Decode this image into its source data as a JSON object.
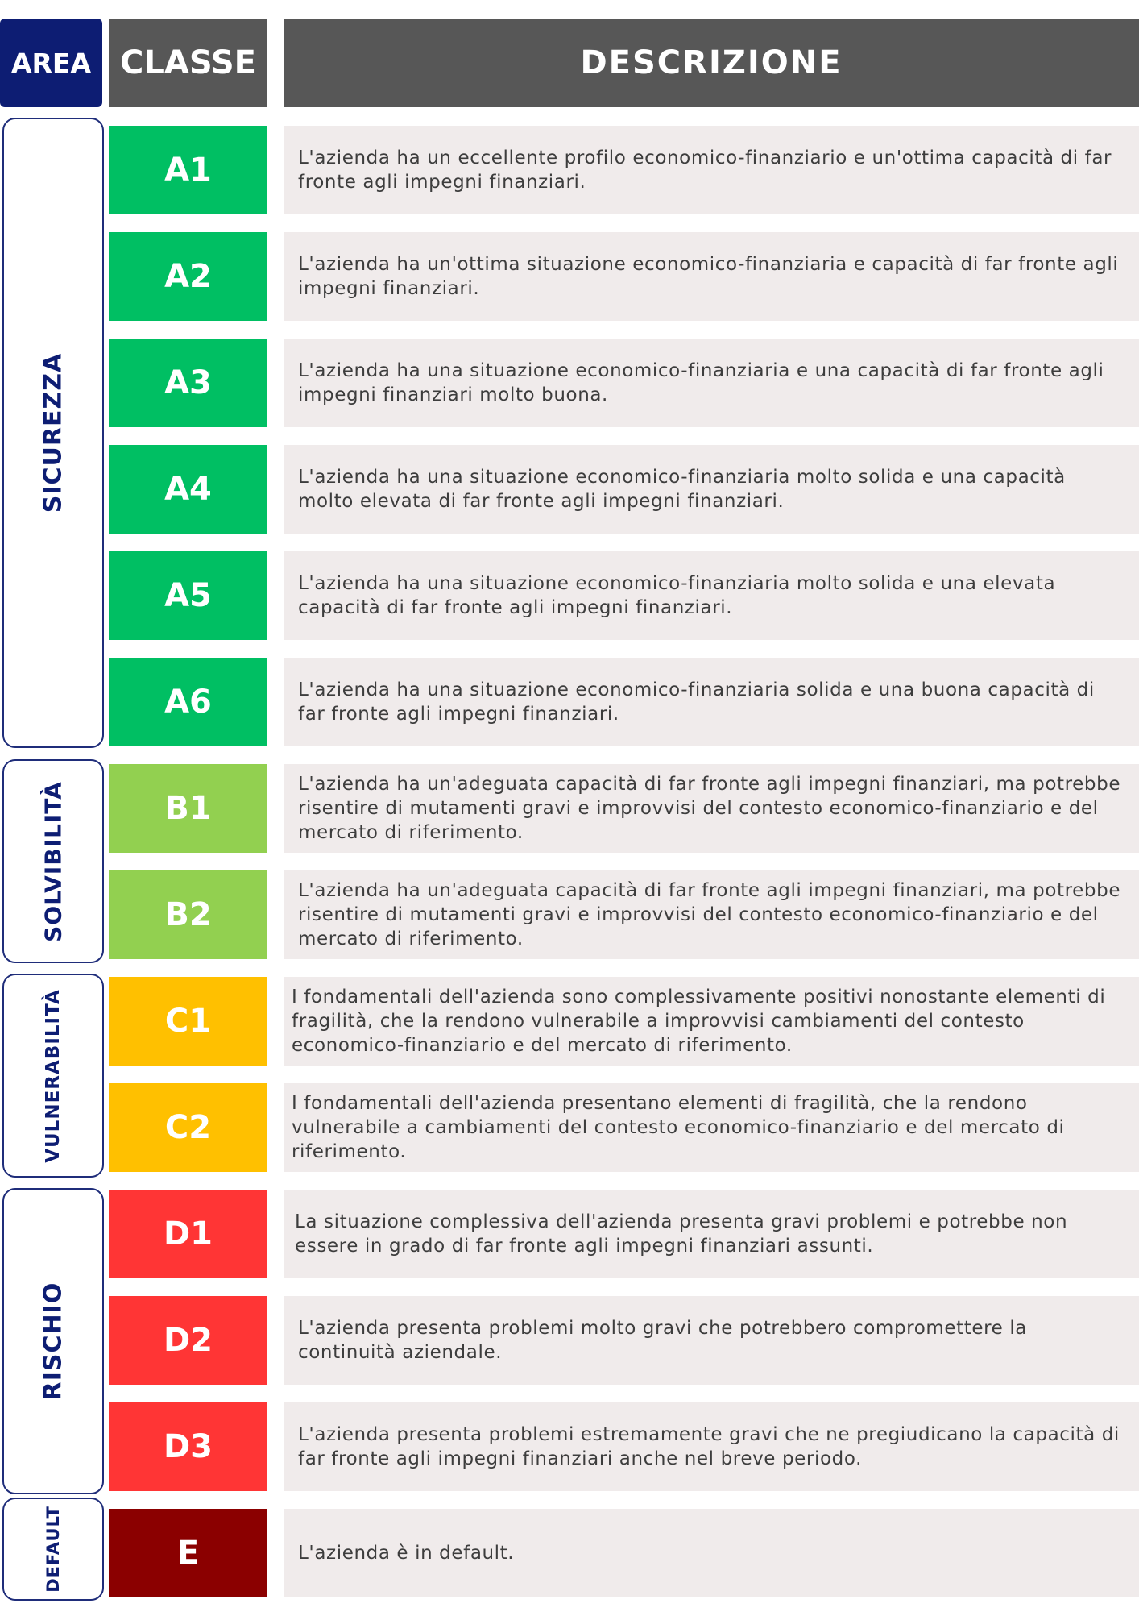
{
  "header": {
    "area": "AREA",
    "class": "CLASSE",
    "description": "DESCRIZIONE"
  },
  "colors": {
    "header_area": "#0d1d73",
    "header_dark": "#575757",
    "class_a": "#00bf63",
    "class_b": "#92d050",
    "class_c": "#ffc000",
    "class_d": "#ff3535",
    "class_e": "#8b0000",
    "desc_bg": "#f0ebeb",
    "area_text": "#0d1d73"
  },
  "areas": [
    {
      "label": "SICUREZZA"
    },
    {
      "label": "SOLVIBILITÀ"
    },
    {
      "label": "VULNERABILITÀ"
    },
    {
      "label": "RISCHIO"
    },
    {
      "label": "DEFAULT"
    }
  ],
  "rows": [
    {
      "class": "A1",
      "description": "L'azienda ha un eccellente profilo economico-finanziario e un'ottima capacità di far fronte agli impegni finanziari."
    },
    {
      "class": "A2",
      "description": "L'azienda ha un'ottima situazione economico-finanziaria e capacità di far fronte agli impegni finanziari."
    },
    {
      "class": "A3",
      "description": "L'azienda ha una situazione economico-finanziaria e una capacità di far fronte agli impegni finanziari molto buona."
    },
    {
      "class": "A4",
      "description": "L'azienda ha una situazione economico-finanziaria molto solida e una capacità molto elevata di far fronte agli impegni finanziari."
    },
    {
      "class": "A5",
      "description": "L'azienda ha una situazione economico-finanziaria molto solida e una elevata capacità di far fronte agli impegni finanziari."
    },
    {
      "class": "A6",
      "description": "L'azienda ha una situazione economico-finanziaria solida e una buona capacità di far fronte agli impegni finanziari."
    },
    {
      "class": "B1",
      "description": "L'azienda ha un'adeguata capacità di far fronte agli impegni finanziari, ma potrebbe risentire di mutamenti gravi e improvvisi del contesto economico-finanziario e del mercato di riferimento."
    },
    {
      "class": "B2",
      "description": "L'azienda ha un'adeguata capacità di far fronte agli impegni finanziari, ma potrebbe risentire di mutamenti gravi e improvvisi del contesto economico-finanziario e del mercato di riferimento."
    },
    {
      "class": "C1",
      "description": "I fondamentali dell'azienda sono complessivamente positivi nonostante elementi di fragilità, che la rendono vulnerabile a improvvisi cambiamenti del contesto economico-finanziario e del mercato di riferimento."
    },
    {
      "class": "C2",
      "description": "I fondamentali dell'azienda presentano elementi di fragilità, che la rendono vulnerabile a cambiamenti del contesto economico-finanziario e del mercato di riferimento."
    },
    {
      "class": "D1",
      "description": "La situazione complessiva dell'azienda presenta gravi problemi e potrebbe non essere in grado di far fronte agli impegni finanziari assunti."
    },
    {
      "class": "D2",
      "description": "L'azienda presenta problemi molto gravi che potrebbero compromettere la continuità aziendale."
    },
    {
      "class": "D3",
      "description": "L'azienda presenta problemi estremamente gravi che ne pregiudicano la capacità di far fronte agli impegni finanziari anche nel breve periodo."
    },
    {
      "class": "E",
      "description": "L'azienda è in default."
    }
  ]
}
